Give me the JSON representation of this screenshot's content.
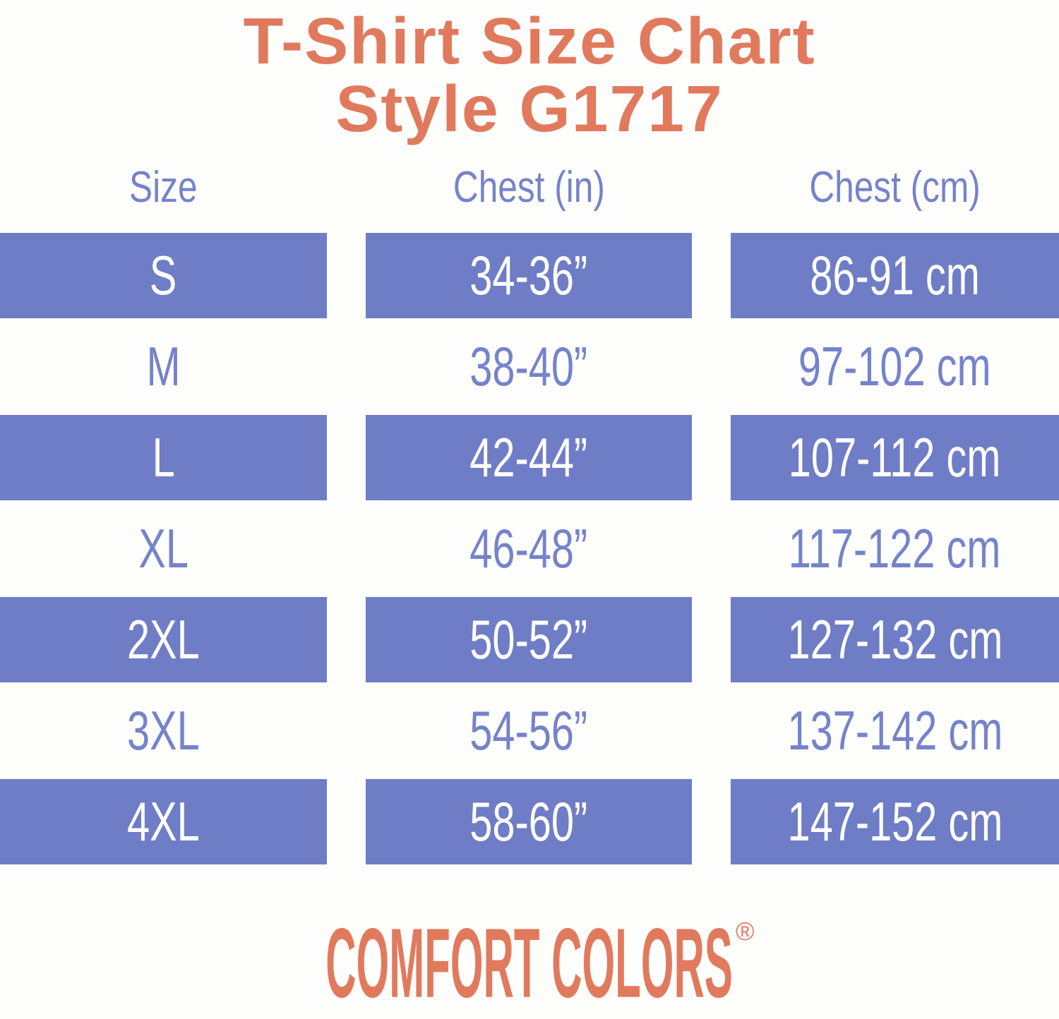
{
  "title": {
    "line1": "T-Shirt Size Chart",
    "line2": "Style G1717"
  },
  "chart_data": {
    "type": "table",
    "title": "T-Shirt Size Chart Style G1717",
    "columns": [
      "Size",
      "Chest (in)",
      "Chest (cm)"
    ],
    "rows": [
      [
        "S",
        "34-36”",
        "86-91 cm"
      ],
      [
        "M",
        "38-40”",
        "97-102 cm"
      ],
      [
        "L",
        "42-44”",
        "107-112 cm"
      ],
      [
        "XL",
        "46-48”",
        "117-122 cm"
      ],
      [
        "2XL",
        "50-52”",
        "127-132 cm"
      ],
      [
        "3XL",
        "54-56”",
        "137-142 cm"
      ],
      [
        "4XL",
        "58-60”",
        "147-152 cm"
      ]
    ],
    "highlighted_rows": [
      0,
      2,
      4,
      6
    ],
    "layout": "three separated column blocks, alternating filled and plain rows, no gridlines"
  },
  "footer": {
    "brand": "COMFORT COLORS",
    "registered_mark": "®"
  },
  "colors": {
    "coral": "#e17a5d",
    "periwinkle_fill": "#6f7dc6",
    "periwinkle_text": "#7583cb",
    "text_on_fill": "#ffffff",
    "background": "#fefefc"
  }
}
